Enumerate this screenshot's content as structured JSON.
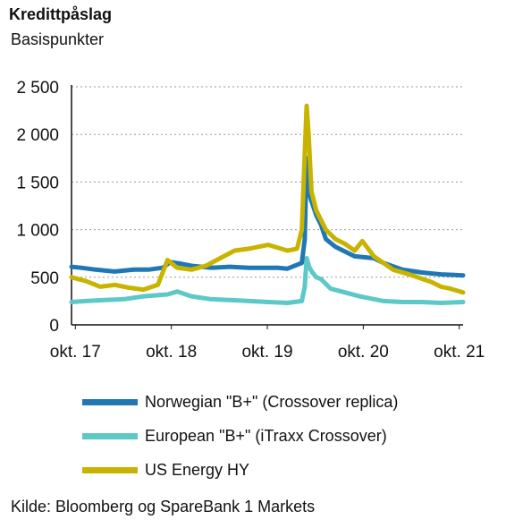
{
  "header": {
    "title": "Kredittpåslag",
    "subtitle": "Basispunkter"
  },
  "source": "Kilde: Bloomberg og SpareBank 1 Markets",
  "chart_data": {
    "type": "line",
    "title": "Kredittpåslag",
    "ylabel": "Basispunkter",
    "ylim": [
      0,
      2500
    ],
    "xlim": [
      2017.75,
      2021.83
    ],
    "y_ticks": [
      0,
      500,
      1000,
      1500,
      2000,
      2500
    ],
    "y_tick_labels": [
      "0",
      "500",
      "1 000",
      "1 500",
      "2 000",
      "2 500"
    ],
    "x_ticks": [
      2017.79,
      2018.79,
      2019.79,
      2020.79,
      2021.79
    ],
    "x_tick_labels": [
      "okt. 17",
      "okt. 18",
      "okt. 19",
      "okt. 20",
      "okt. 21"
    ],
    "grid": "horizontal dotted",
    "legend_position": "bottom",
    "series": [
      {
        "name": "Norwegian \"B+\" (Crossover replica)",
        "color": "#1f78b4",
        "x": [
          2017.75,
          2017.85,
          2018.0,
          2018.2,
          2018.4,
          2018.55,
          2018.7,
          2018.78,
          2018.9,
          2019.0,
          2019.2,
          2019.4,
          2019.6,
          2019.9,
          2020.0,
          2020.15,
          2020.18,
          2020.2,
          2020.22,
          2020.25,
          2020.3,
          2020.35,
          2020.4,
          2020.5,
          2020.7,
          2020.9,
          2021.0,
          2021.2,
          2021.4,
          2021.6,
          2021.83
        ],
        "y": [
          610,
          600,
          580,
          560,
          580,
          580,
          600,
          660,
          640,
          620,
          600,
          610,
          600,
          600,
          590,
          650,
          900,
          1750,
          1400,
          1300,
          1150,
          1050,
          900,
          820,
          720,
          700,
          650,
          580,
          550,
          530,
          520
        ]
      },
      {
        "name": "European \"B+\" (iTraxx Crossover)",
        "color": "#5cc8c8",
        "x": [
          2017.75,
          2017.9,
          2018.1,
          2018.3,
          2018.5,
          2018.75,
          2018.85,
          2019.0,
          2019.2,
          2019.4,
          2019.6,
          2019.8,
          2020.0,
          2020.15,
          2020.18,
          2020.2,
          2020.23,
          2020.26,
          2020.3,
          2020.35,
          2020.45,
          2020.6,
          2020.75,
          2020.85,
          2021.0,
          2021.2,
          2021.4,
          2021.6,
          2021.83
        ],
        "y": [
          240,
          250,
          260,
          270,
          300,
          320,
          350,
          300,
          270,
          260,
          250,
          240,
          230,
          250,
          400,
          700,
          600,
          550,
          500,
          480,
          380,
          340,
          300,
          280,
          250,
          240,
          240,
          230,
          240
        ]
      },
      {
        "name": "US Energy HY",
        "color": "#c8b400",
        "x": [
          2017.75,
          2017.9,
          2018.05,
          2018.2,
          2018.35,
          2018.5,
          2018.65,
          2018.75,
          2018.85,
          2019.0,
          2019.15,
          2019.3,
          2019.45,
          2019.6,
          2019.8,
          2020.0,
          2020.1,
          2020.15,
          2020.18,
          2020.2,
          2020.22,
          2020.25,
          2020.3,
          2020.4,
          2020.5,
          2020.6,
          2020.7,
          2020.78,
          2020.9,
          2021.1,
          2021.3,
          2021.5,
          2021.6,
          2021.7,
          2021.83
        ],
        "y": [
          500,
          460,
          400,
          420,
          390,
          370,
          420,
          680,
          600,
          580,
          620,
          700,
          780,
          800,
          840,
          780,
          800,
          1000,
          1800,
          2300,
          2000,
          1400,
          1200,
          1000,
          900,
          850,
          780,
          880,
          720,
          580,
          520,
          450,
          400,
          380,
          340
        ]
      }
    ]
  }
}
